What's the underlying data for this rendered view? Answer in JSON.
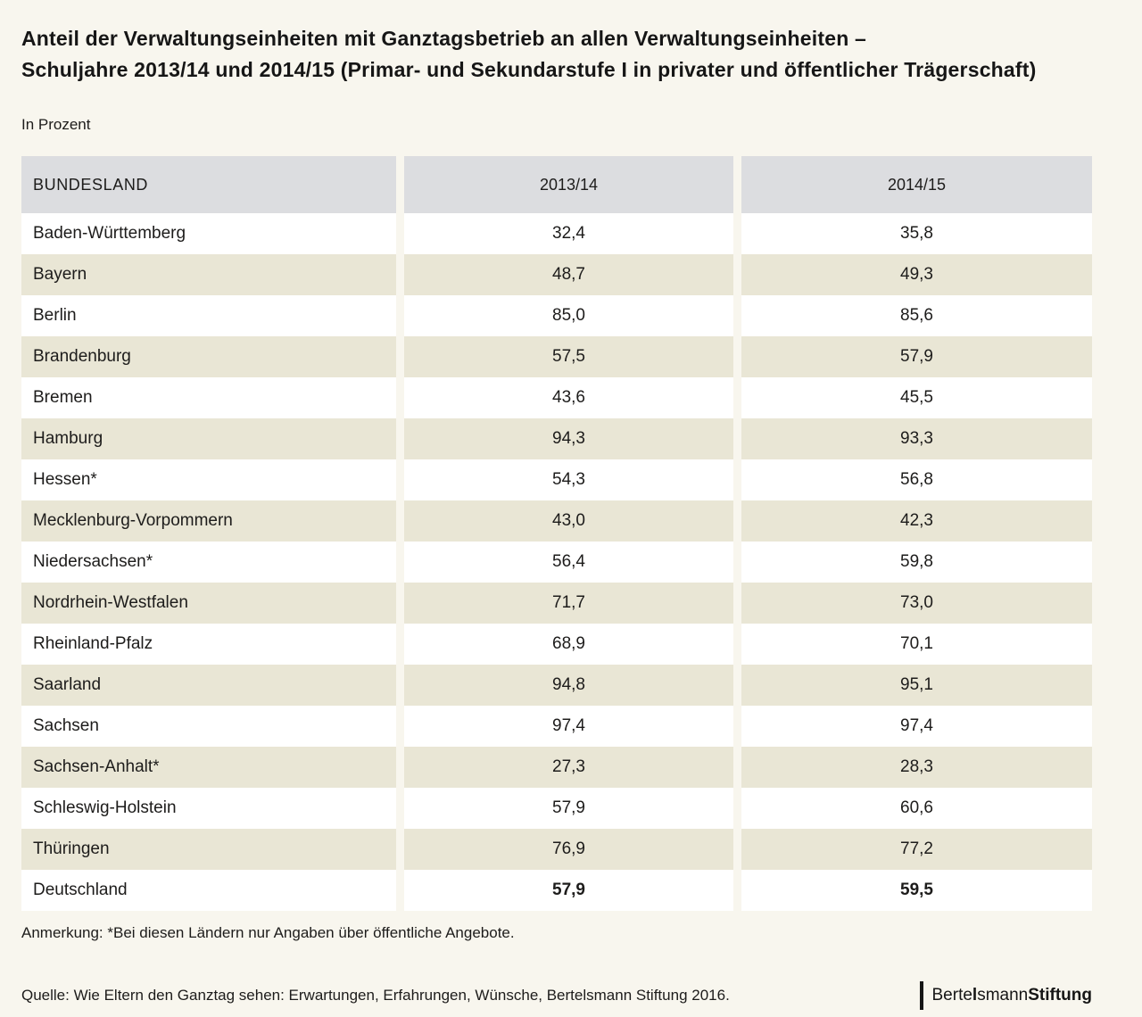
{
  "header": {
    "title": "Anteil der Verwaltungseinheiten mit Ganztagsbetrieb an allen Verwaltungseinheiten –\nSchuljahre 2013/14 und 2014/15 (Primar- und Sekundarstufe I in privater und öffentlicher Trägerschaft)",
    "subtitle": "In Prozent"
  },
  "chart_data": {
    "type": "table",
    "title": "Anteil der Verwaltungseinheiten mit Ganztagsbetrieb an allen Verwaltungseinheiten – Schuljahre 2013/14 und 2014/15 (Primar- und Sekundarstufe I in privater und öffentlicher Trägerschaft)",
    "unit": "In Prozent",
    "columns": [
      "BUNDESLAND",
      "2013/14",
      "2014/15"
    ],
    "rows": [
      {
        "label": "Baden-Württemberg",
        "values": [
          "32,4",
          "35,8"
        ],
        "emphasis": false
      },
      {
        "label": "Bayern",
        "values": [
          "48,7",
          "49,3"
        ],
        "emphasis": false
      },
      {
        "label": "Berlin",
        "values": [
          "85,0",
          "85,6"
        ],
        "emphasis": false
      },
      {
        "label": "Brandenburg",
        "values": [
          "57,5",
          "57,9"
        ],
        "emphasis": false
      },
      {
        "label": "Bremen",
        "values": [
          "43,6",
          "45,5"
        ],
        "emphasis": false
      },
      {
        "label": "Hamburg",
        "values": [
          "94,3",
          "93,3"
        ],
        "emphasis": false
      },
      {
        "label": "Hessen*",
        "values": [
          "54,3",
          "56,8"
        ],
        "emphasis": false
      },
      {
        "label": "Mecklenburg-Vorpommern",
        "values": [
          "43,0",
          "42,3"
        ],
        "emphasis": false
      },
      {
        "label": "Niedersachsen*",
        "values": [
          "56,4",
          "59,8"
        ],
        "emphasis": false
      },
      {
        "label": "Nordrhein-Westfalen",
        "values": [
          "71,7",
          "73,0"
        ],
        "emphasis": false
      },
      {
        "label": "Rheinland-Pfalz",
        "values": [
          "68,9",
          "70,1"
        ],
        "emphasis": false
      },
      {
        "label": "Saarland",
        "values": [
          "94,8",
          "95,1"
        ],
        "emphasis": false
      },
      {
        "label": "Sachsen",
        "values": [
          "97,4",
          "97,4"
        ],
        "emphasis": false
      },
      {
        "label": "Sachsen-Anhalt*",
        "values": [
          "27,3",
          "28,3"
        ],
        "emphasis": false
      },
      {
        "label": "Schleswig-Holstein",
        "values": [
          "57,9",
          "60,6"
        ],
        "emphasis": false
      },
      {
        "label": "Thüringen",
        "values": [
          "76,9",
          "77,2"
        ],
        "emphasis": false
      },
      {
        "label": "Deutschland",
        "values": [
          "57,9",
          "59,5"
        ],
        "emphasis": true
      }
    ],
    "note": "Anmerkung: *Bei diesen Ländern nur Angaben über öffentliche Angebote.",
    "source": "Quelle: Wie Eltern den Ganztag sehen: Erwartungen, Erfahrungen, Wünsche, Bertelsmann Stiftung 2016.",
    "legend_position": "none",
    "grid": false
  },
  "footer": {
    "note": "Anmerkung: *Bei diesen Ländern nur Angaben über öffentliche Angebote.",
    "source": "Quelle: Wie Eltern den Ganztag sehen: Erwartungen, Erfahrungen, Wünsche, Bertelsmann Stiftung 2016."
  },
  "logo": {
    "part_regular1": "Berte",
    "part_bold1": "l",
    "part_regular2": "smann",
    "part_bold2": "Stiftung"
  },
  "colors": {
    "page_background": "#f8f6ee",
    "header_row": "#dcdde0",
    "stripe_row": "#e9e6d5",
    "white_row": "#ffffff",
    "text": "#1d1c1b"
  }
}
